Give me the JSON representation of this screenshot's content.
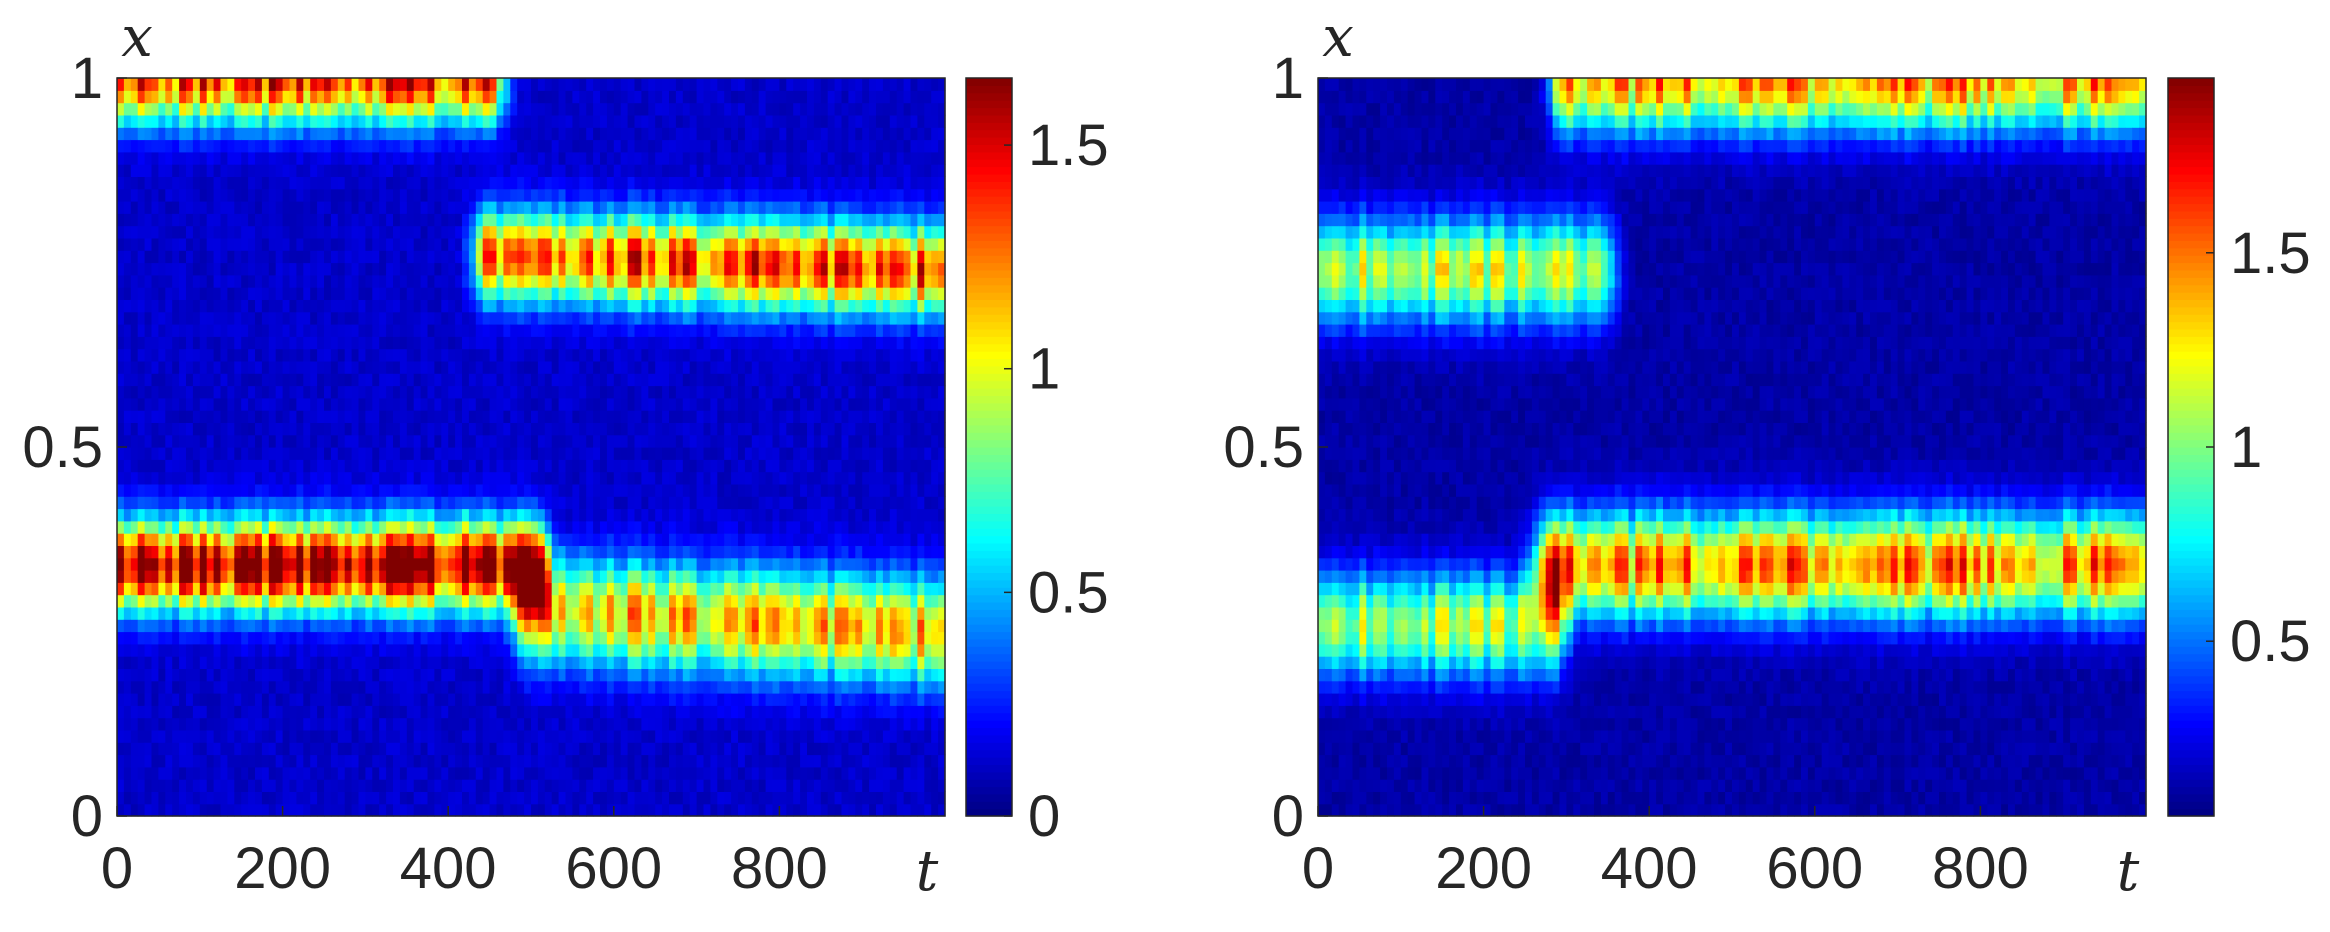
{
  "chart_data": [
    {
      "type": "heatmap",
      "title": "",
      "xlabel": "t",
      "ylabel": "x",
      "xlim": [
        0,
        1000
      ],
      "ylim": [
        0,
        1
      ],
      "x_ticks": [
        0,
        200,
        400,
        600,
        800
      ],
      "x_tick_labels": [
        "0",
        "200",
        "400",
        "600",
        "800"
      ],
      "y_ticks": [
        0,
        0.5,
        1
      ],
      "y_tick_labels": [
        "0",
        "0.5",
        "1"
      ],
      "colormap": "jet",
      "color_range": [
        0,
        1.65
      ],
      "colorbar_ticks": [
        0,
        0.5,
        1,
        1.5
      ],
      "colorbar_tick_labels": [
        "0",
        "0.5",
        "1",
        "1.5"
      ],
      "grid": false,
      "bands": [
        {
          "t_start": 0,
          "t_end": 450,
          "x_center": 1.0,
          "width": 0.06,
          "peak": 1.25
        },
        {
          "t_start": 450,
          "t_end": 1000,
          "x_center_start": 0.76,
          "x_center_end": 0.74,
          "width": 0.06,
          "peak": 1.2
        },
        {
          "t_start": 0,
          "t_end": 500,
          "x_center": 0.34,
          "width": 0.06,
          "peak": 1.5
        },
        {
          "t_start": 500,
          "t_end": 1000,
          "x_center_start": 0.28,
          "x_center_end": 0.25,
          "width": 0.07,
          "peak": 1.0
        }
      ]
    },
    {
      "type": "heatmap",
      "title": "",
      "xlabel": "t",
      "ylabel": "x",
      "xlim": [
        0,
        1000
      ],
      "ylim": [
        0,
        1
      ],
      "x_ticks": [
        0,
        200,
        400,
        600,
        800
      ],
      "x_tick_labels": [
        "0",
        "200",
        "400",
        "600",
        "800"
      ],
      "y_ticks": [
        0,
        0.5,
        1
      ],
      "y_tick_labels": [
        "0",
        "0.5",
        "1"
      ],
      "colormap": "jet",
      "color_range": [
        0.05,
        1.95
      ],
      "colorbar_ticks": [
        0.5,
        1,
        1.5
      ],
      "colorbar_tick_labels": [
        "0.5",
        "1",
        "1.5"
      ],
      "grid": false,
      "bands": [
        {
          "t_start": 0,
          "t_end": 340,
          "x_center": 0.74,
          "width": 0.07,
          "peak": 1.0
        },
        {
          "t_start": 300,
          "t_end": 1000,
          "x_center": 1.0,
          "width": 0.07,
          "peak": 1.3
        },
        {
          "t_start": 0,
          "t_end": 280,
          "x_center": 0.26,
          "width": 0.07,
          "peak": 0.95
        },
        {
          "t_start": 280,
          "t_end": 1000,
          "x_center": 0.34,
          "width": 0.07,
          "peak": 1.35
        }
      ]
    }
  ]
}
